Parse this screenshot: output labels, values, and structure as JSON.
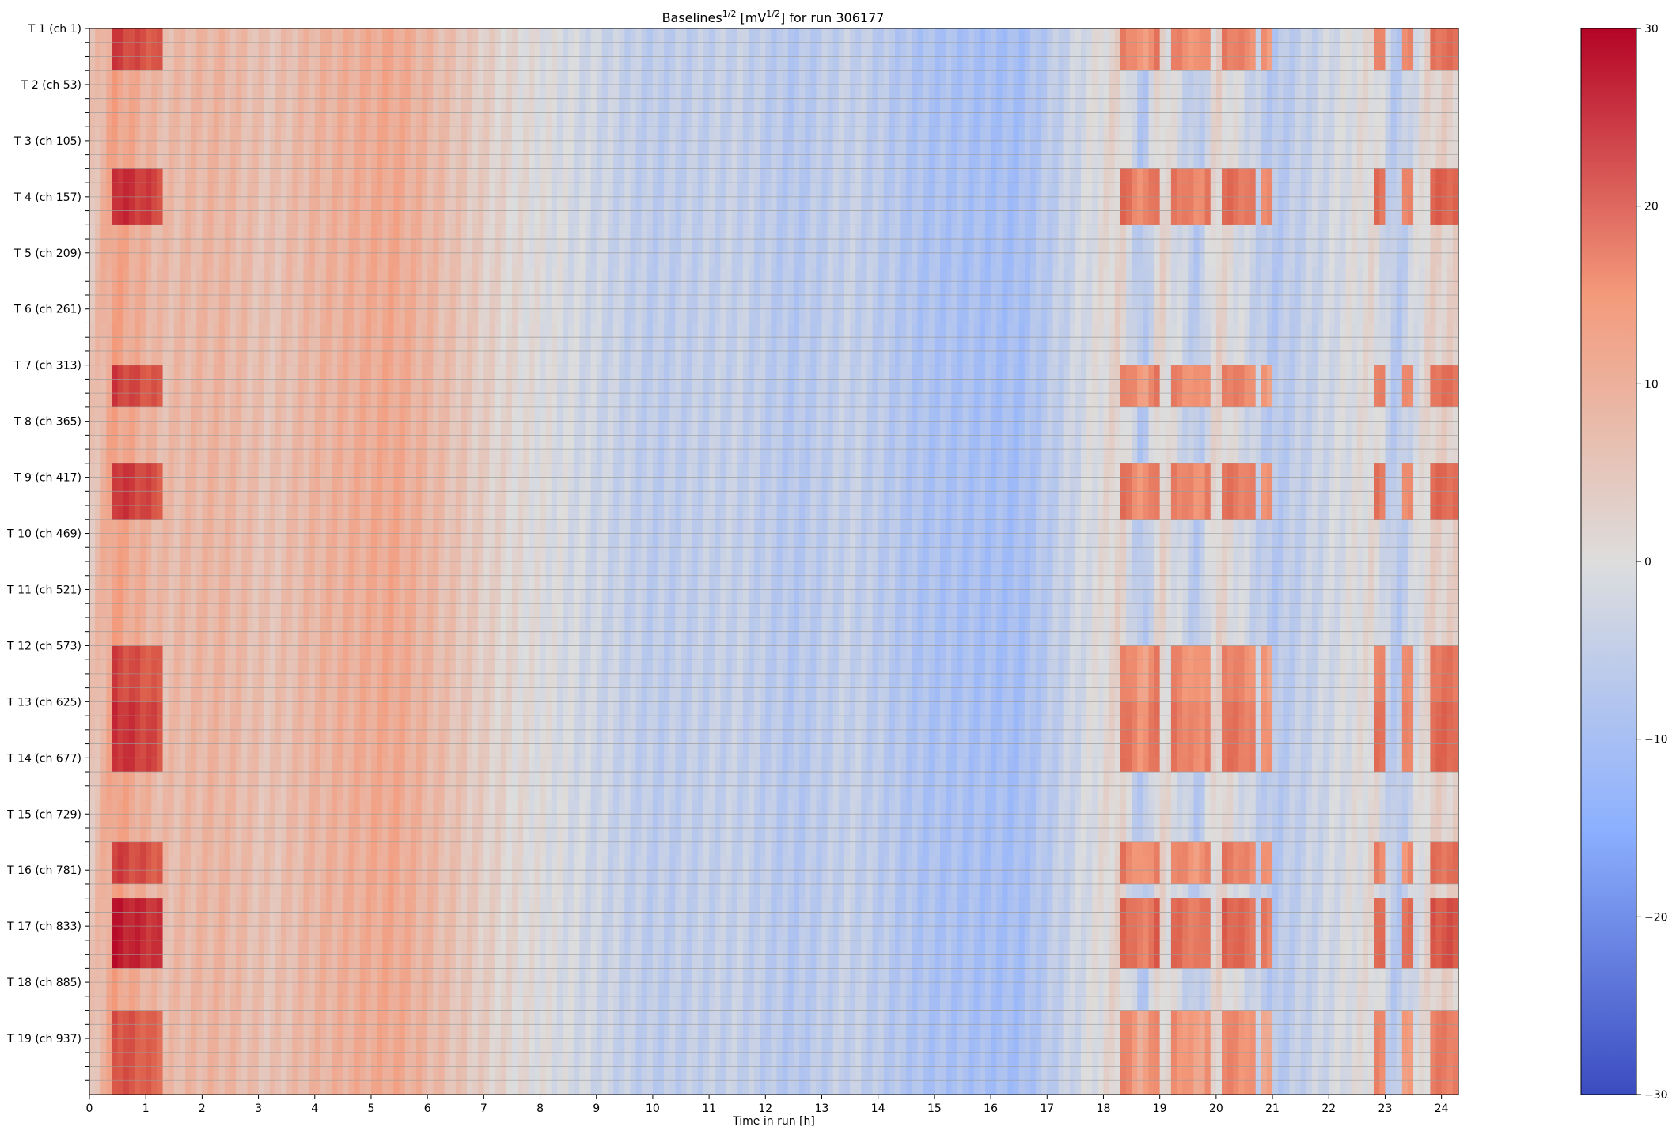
{
  "chart_data": {
    "type": "heatmap",
    "title": {
      "text_before": "Baselines",
      "sup1": "1/2",
      "text_middle": " [mV",
      "sup2": "1/2",
      "text_after": "] for run 306177"
    },
    "xlabel": "Time in run [h]",
    "ylabel": "",
    "x_ticks": [
      "0",
      "1",
      "2",
      "3",
      "4",
      "5",
      "6",
      "7",
      "8",
      "9",
      "10",
      "11",
      "12",
      "13",
      "14",
      "15",
      "16",
      "17",
      "18",
      "19",
      "20",
      "21",
      "22",
      "23",
      "24"
    ],
    "xlim": [
      0,
      24.3
    ],
    "y_major_tick_labels": [
      "T 1 (ch 1)",
      "T 2 (ch 53)",
      "T 3 (ch 105)",
      "T 4 (ch 157)",
      "T 5 (ch 209)",
      "T 6 (ch 261)",
      "T 7 (ch 313)",
      "T 8 (ch 365)",
      "T 9 (ch 417)",
      "T 10 (ch 469)",
      "T 11 (ch 521)",
      "T 12 (ch 573)",
      "T 13 (ch 625)",
      "T 14 (ch 677)",
      "T 15 (ch 729)",
      "T 16 (ch 781)",
      "T 17 (ch 833)",
      "T 18 (ch 885)",
      "T 19 (ch 937)"
    ],
    "n_rows": 76,
    "rows_per_major_tick": 4,
    "colorbar": {
      "cmap": "coolwarm",
      "vmin": -30,
      "vmax": 30,
      "ticks": [
        "30",
        "20",
        "10",
        "0",
        "−10",
        "−20",
        "−30"
      ],
      "tick_values": [
        30,
        20,
        10,
        0,
        -10,
        -20,
        -30
      ]
    },
    "time_profile_hours": [
      [
        0.0,
        3
      ],
      [
        0.45,
        9
      ],
      [
        1.3,
        5
      ],
      [
        2.3,
        6
      ],
      [
        3.2,
        4
      ],
      [
        4.0,
        6
      ],
      [
        5.4,
        8
      ],
      [
        6.8,
        3
      ],
      [
        7.5,
        1
      ],
      [
        8.5,
        -1
      ],
      [
        10.0,
        -4
      ],
      [
        11.5,
        -3
      ],
      [
        12.5,
        -5
      ],
      [
        13.5,
        -3
      ],
      [
        14.8,
        -6
      ],
      [
        16.5,
        -7
      ],
      [
        18.3,
        2
      ],
      [
        18.7,
        -6
      ],
      [
        19.0,
        2
      ],
      [
        19.7,
        -5
      ],
      [
        20.0,
        2
      ],
      [
        21.0,
        -5
      ],
      [
        22.8,
        1
      ],
      [
        23.2,
        -5
      ],
      [
        23.8,
        2
      ],
      [
        24.3,
        2
      ]
    ],
    "hot_time_bands_hours": [
      [
        0.45,
        1.3
      ],
      [
        18.3,
        18.95
      ],
      [
        19.2,
        19.9
      ],
      [
        20.1,
        20.7
      ],
      [
        20.8,
        21.0
      ],
      [
        22.8,
        23.0
      ],
      [
        23.3,
        23.5
      ],
      [
        23.85,
        24.3
      ]
    ],
    "hot_row_groups": [
      {
        "rows": [
          0,
          1,
          2
        ],
        "value": 18
      },
      {
        "rows": [
          10,
          11,
          12,
          13
        ],
        "value": 22
      },
      {
        "rows": [
          24,
          25,
          26
        ],
        "value": 18
      },
      {
        "rows": [
          31,
          32,
          33,
          34
        ],
        "value": 20
      },
      {
        "rows": [
          44,
          45,
          46,
          47
        ],
        "value": 17
      },
      {
        "rows": [
          48,
          49,
          50,
          51,
          52
        ],
        "value": 21
      },
      {
        "rows": [
          58,
          59,
          60
        ],
        "value": 18
      },
      {
        "rows": [
          62,
          63,
          64,
          65,
          66
        ],
        "value": 25
      },
      {
        "rows": [
          70,
          71,
          72,
          73,
          74,
          75
        ],
        "value": 15
      }
    ]
  }
}
